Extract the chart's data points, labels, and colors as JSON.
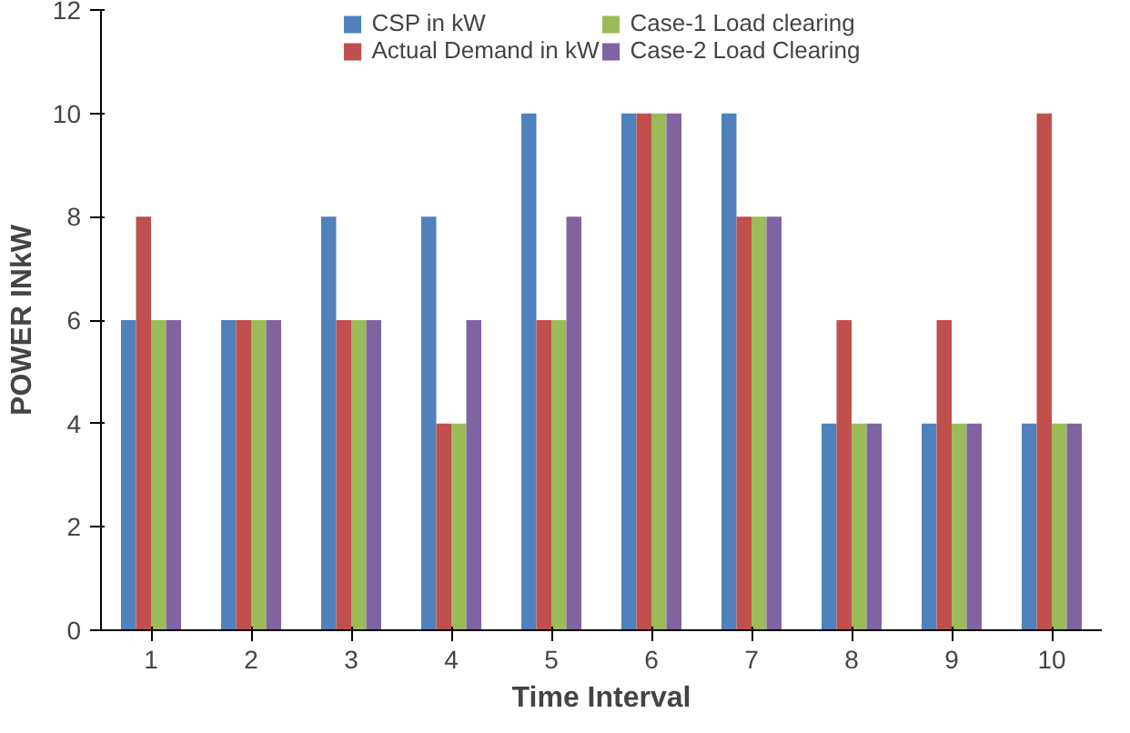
{
  "chart_data": {
    "type": "bar",
    "xlabel": "Time Interval",
    "ylabel": "POWER INkW",
    "categories": [
      "1",
      "2",
      "3",
      "4",
      "5",
      "6",
      "7",
      "8",
      "9",
      "10"
    ],
    "ylim": [
      0,
      12
    ],
    "yticks": [
      0,
      2,
      4,
      6,
      8,
      10,
      12
    ],
    "grid": false,
    "legend": "top",
    "series": [
      {
        "name": "CSP in kW",
        "color": "#4f81bd",
        "values": [
          6,
          6,
          8,
          8,
          10,
          10,
          10,
          4,
          4,
          4
        ]
      },
      {
        "name": "Actual Demand in kW",
        "color": "#c0504d",
        "values": [
          8,
          6,
          6,
          4,
          6,
          10,
          8,
          6,
          6,
          10
        ]
      },
      {
        "name": "Case-1 Load clearing",
        "color": "#9bbb59",
        "values": [
          6,
          6,
          6,
          4,
          6,
          10,
          8,
          4,
          4,
          4
        ]
      },
      {
        "name": "Case-2 Load Clearing",
        "color": "#8064a2",
        "values": [
          6,
          6,
          6,
          6,
          8,
          10,
          8,
          4,
          4,
          4
        ]
      }
    ]
  }
}
